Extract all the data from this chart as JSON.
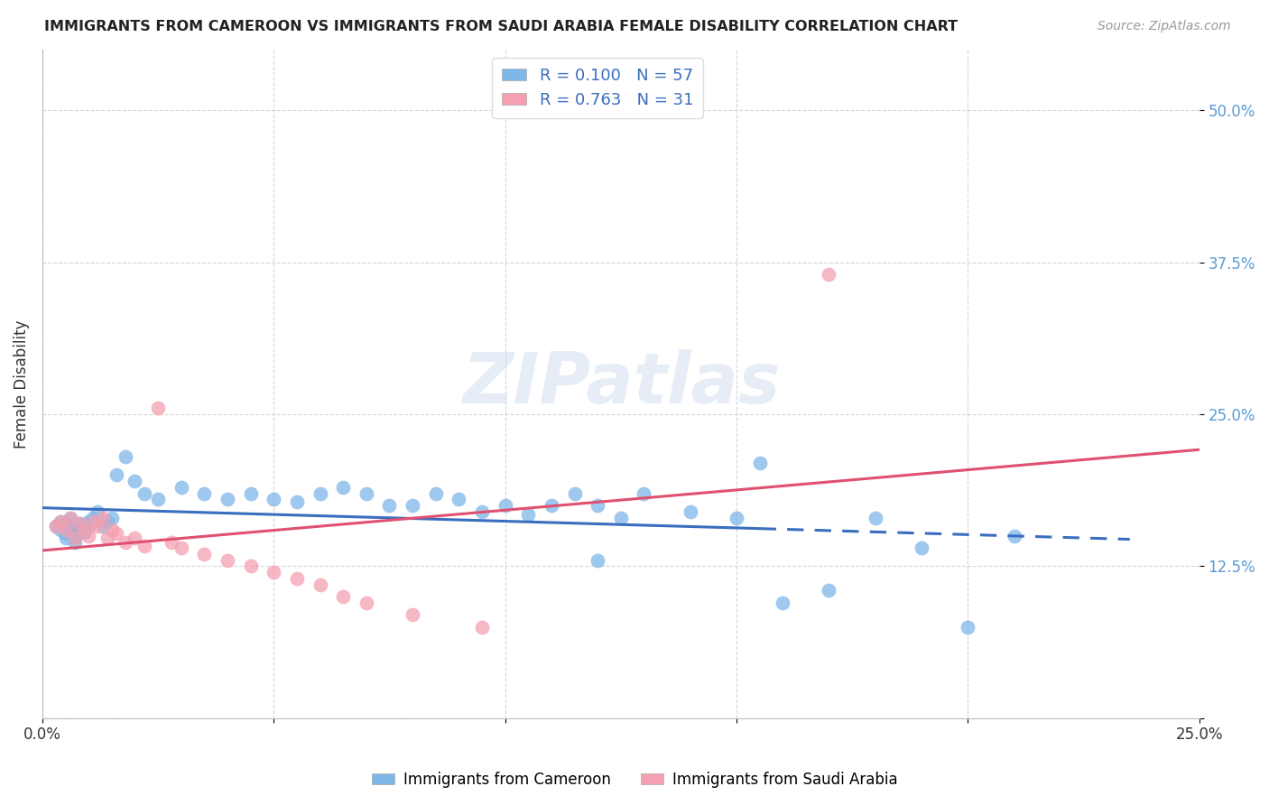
{
  "title": "IMMIGRANTS FROM CAMEROON VS IMMIGRANTS FROM SAUDI ARABIA FEMALE DISABILITY CORRELATION CHART",
  "source": "Source: ZipAtlas.com",
  "ylabel": "Female Disability",
  "xlim": [
    0.0,
    0.25
  ],
  "ylim": [
    0.0,
    0.55
  ],
  "yticks": [
    0.0,
    0.125,
    0.25,
    0.375,
    0.5
  ],
  "ytick_labels": [
    "",
    "12.5%",
    "25.0%",
    "37.5%",
    "50.0%"
  ],
  "xticks": [
    0.0,
    0.05,
    0.1,
    0.15,
    0.2,
    0.25
  ],
  "xtick_labels": [
    "0.0%",
    "",
    "",
    "",
    "",
    "25.0%"
  ],
  "blue_R": 0.1,
  "blue_N": 57,
  "pink_R": 0.763,
  "pink_N": 31,
  "blue_color": "#7EB6E8",
  "pink_color": "#F4A0B0",
  "blue_line_color": "#3A6EBF",
  "pink_line_color": "#E05070",
  "legend_label_blue": "Immigrants from Cameroon",
  "legend_label_pink": "Immigrants from Saudi Arabia",
  "watermark": "ZIPatlas",
  "background_color": "#ffffff",
  "grid_color": "#cccccc",
  "blue_scatter_x": [
    0.003,
    0.004,
    0.004,
    0.005,
    0.005,
    0.005,
    0.006,
    0.006,
    0.007,
    0.007,
    0.007,
    0.008,
    0.008,
    0.009,
    0.01,
    0.01,
    0.011,
    0.012,
    0.013,
    0.014,
    0.015,
    0.016,
    0.018,
    0.02,
    0.022,
    0.025,
    0.03,
    0.035,
    0.04,
    0.045,
    0.05,
    0.055,
    0.06,
    0.065,
    0.07,
    0.075,
    0.08,
    0.085,
    0.09,
    0.095,
    0.1,
    0.105,
    0.11,
    0.115,
    0.12,
    0.125,
    0.13,
    0.14,
    0.15,
    0.155,
    0.16,
    0.17,
    0.18,
    0.19,
    0.2,
    0.21,
    0.12
  ],
  "blue_scatter_y": [
    0.158,
    0.155,
    0.162,
    0.16,
    0.152,
    0.148,
    0.165,
    0.155,
    0.158,
    0.15,
    0.145,
    0.16,
    0.155,
    0.153,
    0.162,
    0.158,
    0.165,
    0.17,
    0.158,
    0.162,
    0.165,
    0.2,
    0.215,
    0.195,
    0.185,
    0.18,
    0.19,
    0.185,
    0.18,
    0.185,
    0.18,
    0.178,
    0.185,
    0.19,
    0.185,
    0.175,
    0.175,
    0.185,
    0.18,
    0.17,
    0.175,
    0.168,
    0.175,
    0.185,
    0.175,
    0.165,
    0.185,
    0.17,
    0.165,
    0.21,
    0.095,
    0.105,
    0.165,
    0.14,
    0.075,
    0.15,
    0.13
  ],
  "pink_scatter_x": [
    0.003,
    0.004,
    0.005,
    0.006,
    0.007,
    0.008,
    0.009,
    0.01,
    0.011,
    0.012,
    0.013,
    0.014,
    0.015,
    0.016,
    0.018,
    0.02,
    0.022,
    0.025,
    0.028,
    0.03,
    0.035,
    0.04,
    0.045,
    0.05,
    0.055,
    0.06,
    0.065,
    0.07,
    0.08,
    0.095,
    0.17
  ],
  "pink_scatter_y": [
    0.158,
    0.162,
    0.155,
    0.165,
    0.148,
    0.16,
    0.155,
    0.15,
    0.162,
    0.158,
    0.165,
    0.148,
    0.155,
    0.152,
    0.145,
    0.148,
    0.142,
    0.255,
    0.145,
    0.14,
    0.135,
    0.13,
    0.125,
    0.12,
    0.115,
    0.11,
    0.1,
    0.095,
    0.085,
    0.075,
    0.365
  ]
}
